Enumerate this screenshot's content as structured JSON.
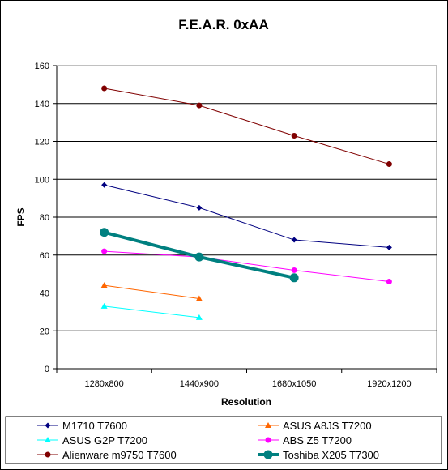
{
  "chart_data": {
    "type": "line",
    "title": "F.E.A.R. 0xAA",
    "xlabel": "Resolution",
    "ylabel": "FPS",
    "categories": [
      "1280x800",
      "1440x900",
      "1680x1050",
      "1920x1200"
    ],
    "ylim": [
      0,
      160
    ],
    "yticks": [
      0,
      20,
      40,
      60,
      80,
      100,
      120,
      140,
      160
    ],
    "grid": "horizontal",
    "legend_position": "bottom",
    "series": [
      {
        "name": "M1710 T7600",
        "values": [
          97,
          85,
          68,
          64
        ],
        "color": "#000080",
        "marker": "diamond",
        "bold": false
      },
      {
        "name": "ASUS A8JS T7200",
        "values": [
          44,
          37,
          null,
          null
        ],
        "color": "#FF6600",
        "marker": "triangle",
        "bold": false
      },
      {
        "name": "ASUS G2P T7200",
        "values": [
          33,
          27,
          null,
          null
        ],
        "color": "#00FFFF",
        "marker": "triangle",
        "bold": false
      },
      {
        "name": "ABS Z5 T7200",
        "values": [
          62,
          59,
          52,
          46
        ],
        "color": "#FF00FF",
        "marker": "circle",
        "bold": false
      },
      {
        "name": "Alienware m9750 T7600",
        "values": [
          148,
          139,
          123,
          108
        ],
        "color": "#800000",
        "marker": "circle",
        "bold": false
      },
      {
        "name": "Toshiba X205 T7300",
        "values": [
          72,
          59,
          48,
          null
        ],
        "color": "#008080",
        "marker": "circle",
        "bold": true
      }
    ]
  }
}
